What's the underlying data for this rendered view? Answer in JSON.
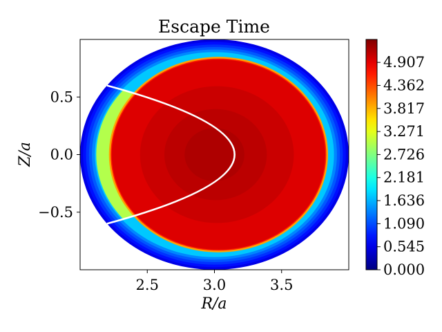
{
  "chart_data": {
    "type": "heatmap",
    "title": "Escape Time",
    "xlabel": "R/a",
    "ylabel": "Z/a",
    "xlim": [
      2.0,
      4.0
    ],
    "ylim": [
      -1.0,
      1.0
    ],
    "x_ticks": [
      "2.5",
      "3.0",
      "3.5"
    ],
    "x_tick_values": [
      2.5,
      3.0,
      3.5
    ],
    "y_ticks": [
      "0.5",
      "0.0",
      "−0.5"
    ],
    "y_tick_values": [
      0.5,
      0.0,
      -0.5
    ],
    "colormap": "jet",
    "colorbar": {
      "range": [
        0.0,
        5.45
      ],
      "ticks": [
        "0.000",
        "0.545",
        "1.090",
        "1.636",
        "2.181",
        "2.726",
        "3.271",
        "3.817",
        "4.362",
        "4.907"
      ],
      "tick_values": [
        0.0,
        0.545,
        1.09,
        1.636,
        2.181,
        2.726,
        3.271,
        3.817,
        4.362,
        4.907
      ]
    },
    "domain": {
      "shape": "ellipse",
      "center": [
        3.0,
        0.0
      ],
      "semi_axes": [
        1.0,
        1.0
      ]
    },
    "regions": [
      {
        "description": "outer shell",
        "value": 0.8
      },
      {
        "description": "core region",
        "value": 4.95,
        "peak": 5.2
      },
      {
        "description": "left edge region",
        "value": 3.0
      }
    ],
    "overlay_curve": {
      "color": "#ffffff",
      "shape": "parabola",
      "apex": [
        3.15,
        0.0
      ],
      "endpoints": [
        [
          2.2,
          0.6
        ],
        [
          2.2,
          -0.6
        ]
      ]
    }
  }
}
